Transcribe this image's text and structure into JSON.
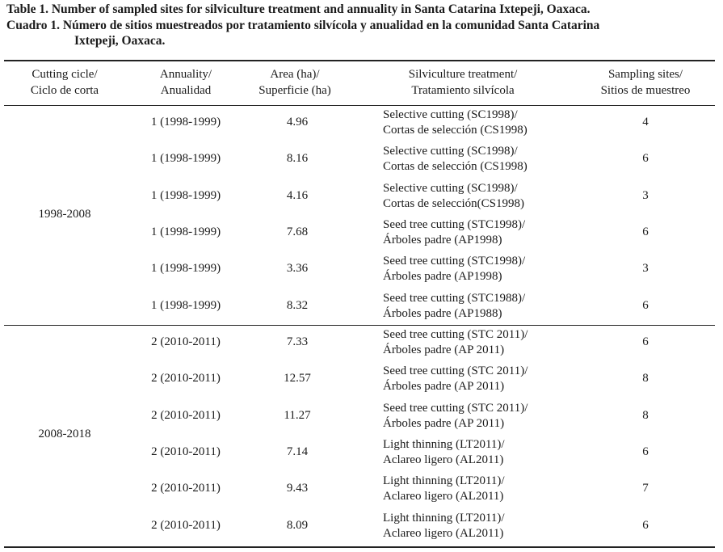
{
  "title": "Table 1. Number of sampled sites for silviculture treatment and annuality in Santa Catarina Ixtepeji, Oaxaca.",
  "subtitle_lines": [
    "Cuadro 1. Número de sitios muestreados por tratamiento silvícola y anualidad en la comunidad Santa Catarina",
    "Ixtepeji, Oaxaca."
  ],
  "table": {
    "header": [
      [
        "Cutting cicle/",
        "Ciclo de corta"
      ],
      [
        "Annuality/",
        "Anualidad"
      ],
      [
        "Area (ha)/",
        "Superficie (ha)"
      ],
      [
        "Silviculture treatment/",
        "Tratamiento silvícola"
      ],
      [
        "Sampling sites/",
        "Sitios de muestreo"
      ]
    ],
    "groups": [
      {
        "cycle": "1998-2008",
        "rows": [
          [
            "1 (1998-1999)",
            "4.96",
            [
              "Selective cutting (SC1998)/",
              "Cortas de selección (CS1998)"
            ],
            "4"
          ],
          [
            "1 (1998-1999)",
            "8.16",
            [
              "Selective cutting (SC1998)/",
              "Cortas de selección (CS1998)"
            ],
            "6"
          ],
          [
            "1 (1998-1999)",
            "4.16",
            [
              "Selective cutting (SC1998)/",
              "Cortas de selección(CS1998)"
            ],
            "3"
          ],
          [
            "1 (1998-1999)",
            "7.68",
            [
              "Seed tree cutting (STC1998)/",
              "Árboles padre (AP1998)"
            ],
            "6"
          ],
          [
            "1 (1998-1999)",
            "3.36",
            [
              "Seed tree cutting (STC1998)/",
              "Árboles padre (AP1998)"
            ],
            "3"
          ],
          [
            "1 (1998-1999)",
            "8.32",
            [
              "Seed tree cutting (STC1988)/",
              "Árboles padre (AP1988)"
            ],
            "6"
          ]
        ]
      },
      {
        "cycle": "2008-2018",
        "rows": [
          [
            "2 (2010-2011)",
            "7.33",
            [
              "Seed tree cutting (STC 2011)/",
              "Árboles padre (AP 2011)"
            ],
            "6"
          ],
          [
            "2 (2010-2011)",
            "12.57",
            [
              "Seed tree cutting (STC 2011)/",
              "Árboles padre (AP 2011)"
            ],
            "8"
          ],
          [
            "2 (2010-2011)",
            "11.27",
            [
              "Seed tree cutting (STC 2011)/",
              "Árboles padre (AP 2011)"
            ],
            "8"
          ],
          [
            "2 (2010-2011)",
            "7.14",
            [
              "Light thinning (LT2011)/",
              "Aclareo ligero (AL2011)"
            ],
            "6"
          ],
          [
            "2 (2010-2011)",
            "9.43",
            [
              "Light thinning (LT2011)/",
              "Aclareo ligero (AL2011)"
            ],
            "7"
          ],
          [
            "2 (2010-2011)",
            "8.09",
            [
              "Light thinning (LT2011)/",
              "Aclareo ligero (AL2011)"
            ],
            "6"
          ]
        ]
      }
    ]
  }
}
